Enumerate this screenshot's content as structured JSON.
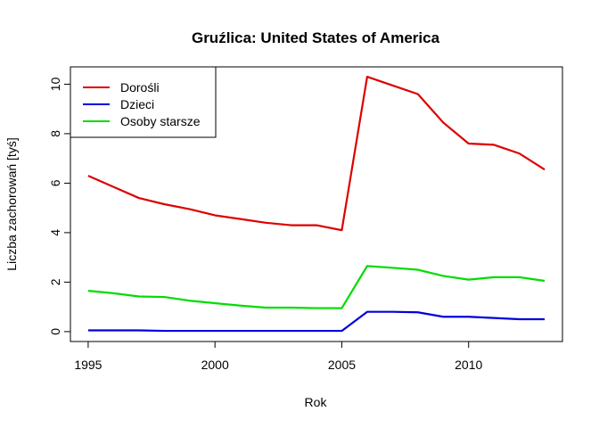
{
  "chart_data": {
    "type": "line",
    "title": "Gruźlica: United States of America",
    "xlabel": "Rok",
    "ylabel": "Liczba zachorowań [tyś]",
    "xlim": [
      1994.3,
      2013.7
    ],
    "ylim": [
      -0.4,
      10.7
    ],
    "x_ticks": [
      1995,
      2000,
      2005,
      2010
    ],
    "y_ticks": [
      0,
      2,
      4,
      6,
      8,
      10
    ],
    "grid": false,
    "legend_position": "top-left",
    "x": [
      1995,
      1996,
      1997,
      1998,
      1999,
      2000,
      2001,
      2002,
      2003,
      2004,
      2005,
      2006,
      2007,
      2008,
      2009,
      2010,
      2011,
      2012,
      2013
    ],
    "series": [
      {
        "name": "Dorośli",
        "color": "#dd0000",
        "values": [
          6.3,
          5.85,
          5.4,
          5.15,
          4.95,
          4.7,
          4.55,
          4.4,
          4.3,
          4.3,
          4.1,
          10.3,
          9.95,
          9.6,
          8.45,
          7.6,
          7.55,
          7.2,
          6.55
        ]
      },
      {
        "name": "Dzieci",
        "color": "#0000dd",
        "values": [
          0.05,
          0.05,
          0.05,
          0.03,
          0.03,
          0.03,
          0.03,
          0.03,
          0.03,
          0.03,
          0.03,
          0.8,
          0.8,
          0.78,
          0.6,
          0.6,
          0.55,
          0.5,
          0.5
        ]
      },
      {
        "name": "Osoby starsze",
        "color": "#00dd00",
        "values": [
          1.65,
          1.55,
          1.42,
          1.4,
          1.25,
          1.15,
          1.05,
          0.97,
          0.97,
          0.95,
          0.95,
          2.65,
          2.58,
          2.5,
          2.25,
          2.1,
          2.2,
          2.2,
          2.05
        ]
      }
    ]
  }
}
